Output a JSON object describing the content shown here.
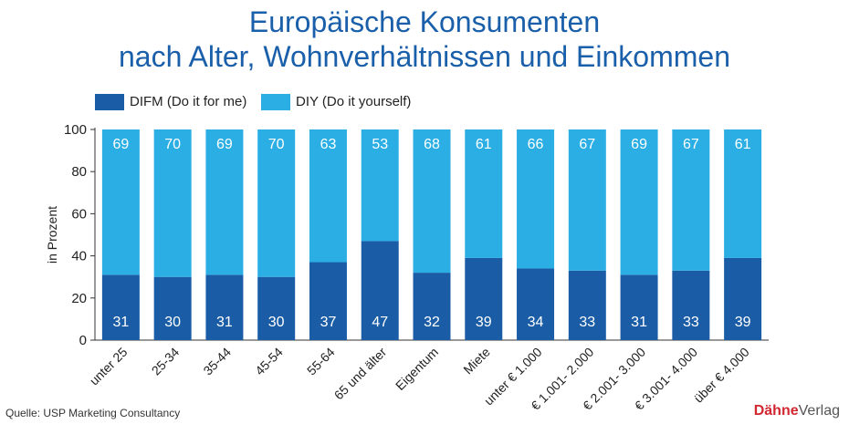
{
  "title_line1": "Europäische Konsumenten",
  "title_line2": "nach Alter, Wohnverhältnissen und Einkommen",
  "source": "Quelle: USP Marketing Consultancy",
  "brand": {
    "part1": "Dähne",
    "part2": "Verlag"
  },
  "colors": {
    "difm": "#1a5da6",
    "diy": "#2aaee4",
    "title": "#1a5faa"
  },
  "chart_data": {
    "type": "bar",
    "stacked": true,
    "title": "Europäische Konsumenten nach Alter, Wohnverhältnissen und Einkommen",
    "xlabel": "",
    "ylabel": "in Prozent",
    "ylim": [
      0,
      100
    ],
    "yticks": [
      0,
      20,
      40,
      60,
      80,
      100
    ],
    "categories": [
      "unter 25",
      "25-34",
      "35-44",
      "45-54",
      "55-64",
      "65 und älter",
      "Eigentum",
      "Miete",
      "unter € 1.000",
      "€ 1.001- 2.000",
      "€ 2.001- 3.000",
      "€ 3.001- 4.000",
      "über € 4.000"
    ],
    "series": [
      {
        "name": "DIFM (Do it for me)",
        "values": [
          31,
          30,
          31,
          30,
          37,
          47,
          32,
          39,
          34,
          33,
          31,
          33,
          39
        ]
      },
      {
        "name": "DIY (Do it yourself)",
        "values": [
          69,
          70,
          69,
          70,
          63,
          53,
          68,
          61,
          66,
          67,
          69,
          67,
          61
        ]
      }
    ]
  }
}
